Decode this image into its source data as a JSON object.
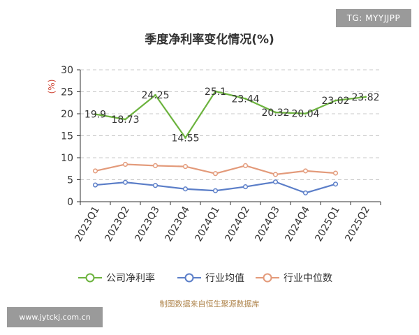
{
  "tags": {
    "top": "TG: MYYJJPP",
    "bottom": "www.jytckj.com.cn"
  },
  "title": "季度净利率变化情况(%)",
  "source": "制图数据来自恒生聚源数据库",
  "chart_data": {
    "type": "line",
    "title": "季度净利率变化情况(%)",
    "ylabel": "(%)",
    "ylim": [
      0,
      30
    ],
    "yticks": [
      0,
      5,
      10,
      15,
      20,
      25,
      30
    ],
    "grid": true,
    "legend_position": "bottom",
    "categories": [
      "2023Q1",
      "2023Q2",
      "2023Q3",
      "2023Q4",
      "2024Q1",
      "2024Q2",
      "2024Q3",
      "2024Q4",
      "2025Q1",
      "2025Q2"
    ],
    "series": [
      {
        "name": "公司净利率",
        "color": "#6cb33e",
        "marker": false,
        "show_labels": true,
        "values": [
          19.9,
          18.73,
          24.25,
          14.55,
          25.1,
          23.44,
          20.32,
          20.04,
          23.02,
          23.82
        ]
      },
      {
        "name": "行业均值",
        "color": "#5b7ec8",
        "marker": true,
        "show_labels": false,
        "values": [
          3.8,
          4.4,
          3.7,
          2.9,
          2.5,
          3.4,
          4.5,
          2.0,
          4.0,
          null
        ]
      },
      {
        "name": "行业中位数",
        "color": "#e39a7a",
        "marker": true,
        "show_labels": false,
        "values": [
          7.0,
          8.5,
          8.2,
          8.0,
          6.4,
          8.2,
          6.2,
          7.0,
          6.5,
          null
        ]
      }
    ]
  }
}
